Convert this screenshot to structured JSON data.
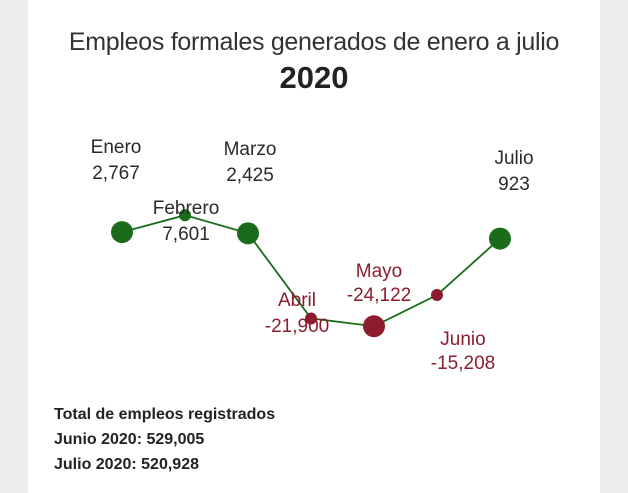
{
  "title": "Empleos formales generados de enero a julio",
  "subtitle": "2020",
  "colors": {
    "positive": "#1a6b1a",
    "negative": "#8c1c2e",
    "line": "#1a6b1a"
  },
  "chart_data": {
    "type": "line",
    "title": "Empleos formales generados de enero a julio",
    "subtitle": "2020",
    "categories": [
      "Enero",
      "Febrero",
      "Marzo",
      "Abril",
      "Mayo",
      "Junio",
      "Julio"
    ],
    "values": [
      2767,
      7601,
      2425,
      -21900,
      -24122,
      -15208,
      923
    ],
    "value_labels": [
      "2,767",
      "7,601",
      "2,425",
      "-21,900",
      "-24,122",
      "-15,208",
      "923"
    ]
  },
  "footer": {
    "heading": "Total de empleos registrados",
    "line1": "Junio 2020: 529,005",
    "line2": "Julio 2020: 520,928"
  }
}
